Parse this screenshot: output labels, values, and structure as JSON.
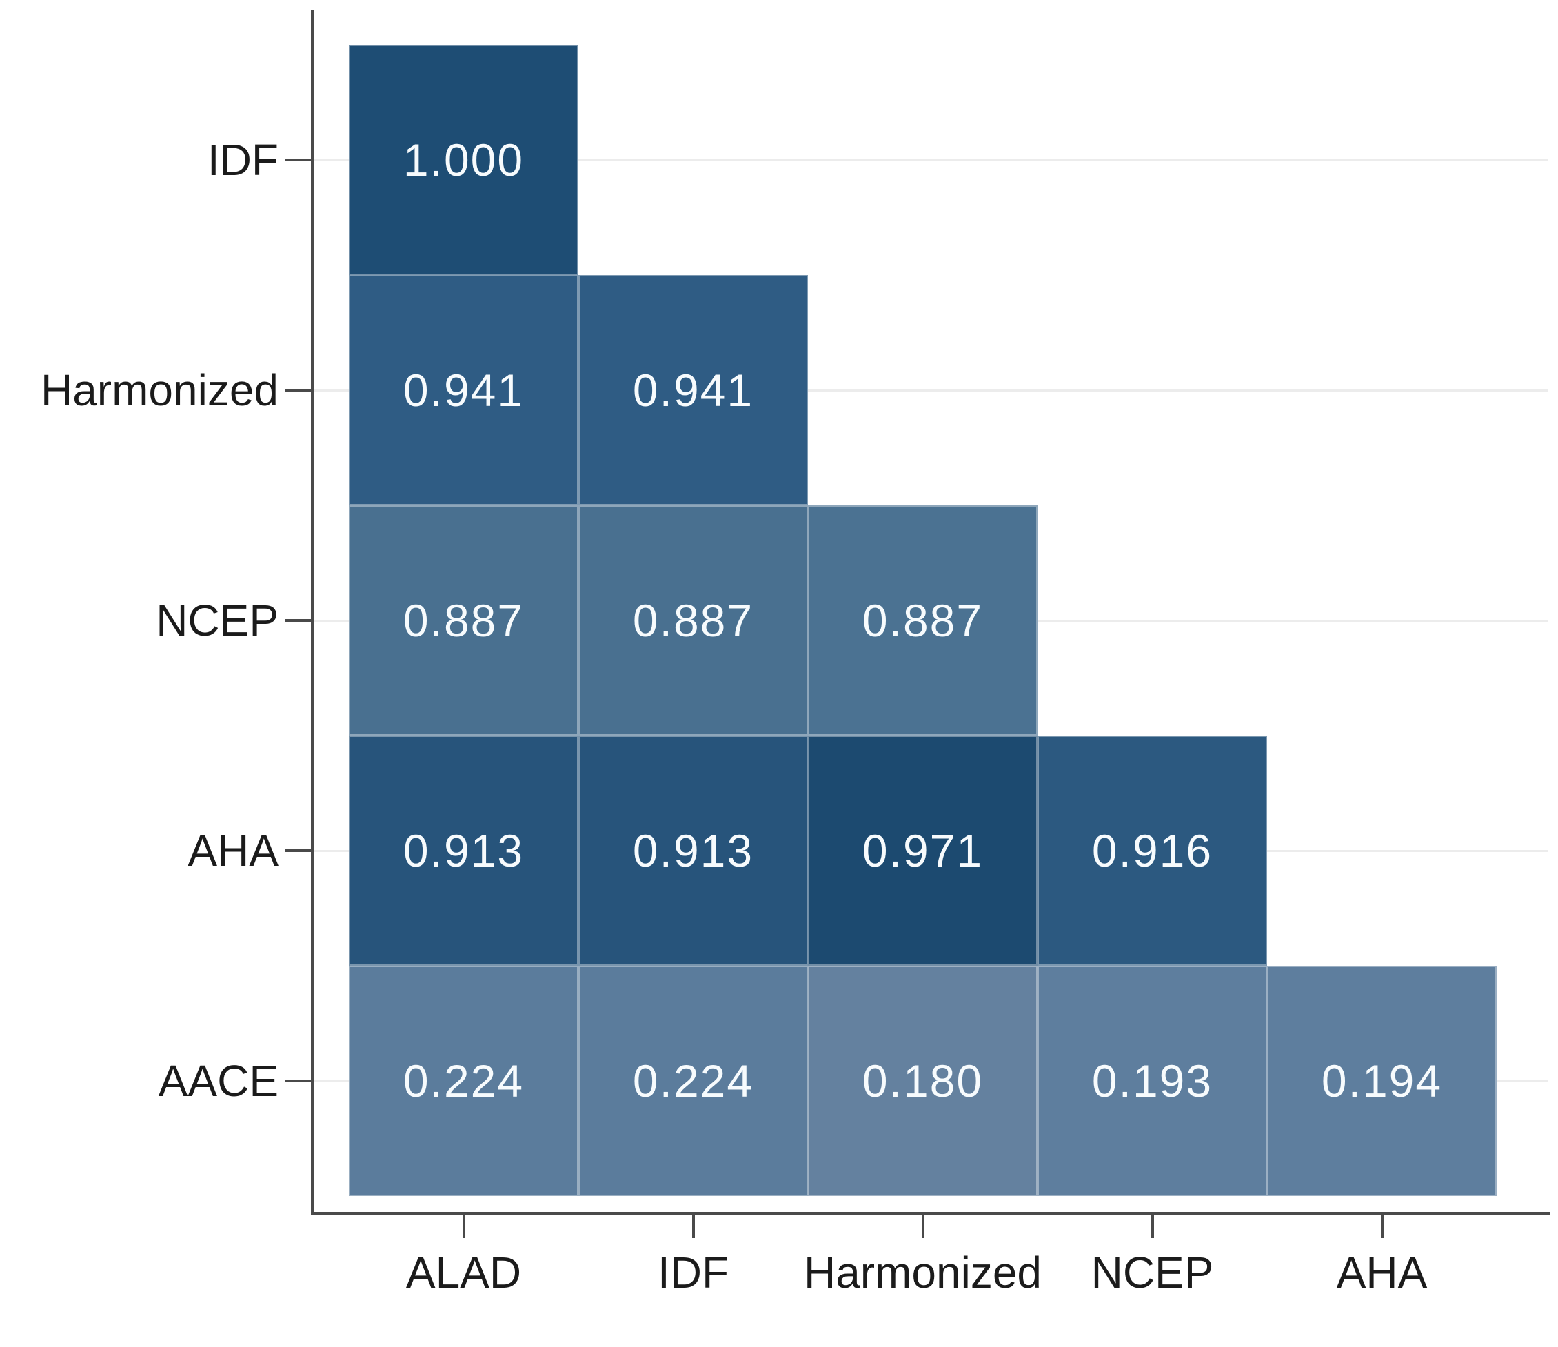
{
  "figure": {
    "background": "#ffffff",
    "description": "Lower-triangular correlation heatmap comparing metabolic syndrome definitions"
  },
  "chart_data": {
    "type": "heatmap",
    "title": "",
    "xlabel": "",
    "ylabel": "",
    "shape": "lower-triangular",
    "legend": "none",
    "grid": "faint horizontal gridlines at each row center",
    "x_categories": [
      "ALAD",
      "IDF",
      "Harmonized",
      "NCEP",
      "AHA"
    ],
    "y_categories": [
      "IDF",
      "Harmonized",
      "NCEP",
      "AHA",
      "AACE"
    ],
    "cells": [
      {
        "y": "IDF",
        "x": "ALAD",
        "value": 1.0,
        "label": "1.000",
        "color": "#1e4d74"
      },
      {
        "y": "Harmonized",
        "x": "ALAD",
        "value": 0.941,
        "label": "0.941",
        "color": "#2f5c84"
      },
      {
        "y": "Harmonized",
        "x": "IDF",
        "value": 0.941,
        "label": "0.941",
        "color": "#2f5c84"
      },
      {
        "y": "NCEP",
        "x": "ALAD",
        "value": 0.887,
        "label": "0.887",
        "color": "#497090"
      },
      {
        "y": "NCEP",
        "x": "IDF",
        "value": 0.887,
        "label": "0.887",
        "color": "#497090"
      },
      {
        "y": "NCEP",
        "x": "Harmonized",
        "value": 0.887,
        "label": "0.887",
        "color": "#4b7292"
      },
      {
        "y": "AHA",
        "x": "ALAD",
        "value": 0.913,
        "label": "0.913",
        "color": "#27547b"
      },
      {
        "y": "AHA",
        "x": "IDF",
        "value": 0.913,
        "label": "0.913",
        "color": "#27547b"
      },
      {
        "y": "AHA",
        "x": "Harmonized",
        "value": 0.971,
        "label": "0.971",
        "color": "#1c4a70"
      },
      {
        "y": "AHA",
        "x": "NCEP",
        "value": 0.916,
        "label": "0.916",
        "color": "#2c5980"
      },
      {
        "y": "AACE",
        "x": "ALAD",
        "value": 0.224,
        "label": "0.224",
        "color": "#5b7c9c"
      },
      {
        "y": "AACE",
        "x": "IDF",
        "value": 0.224,
        "label": "0.224",
        "color": "#5b7c9c"
      },
      {
        "y": "AACE",
        "x": "Harmonized",
        "value": 0.18,
        "label": "0.180",
        "color": "#64819f"
      },
      {
        "y": "AACE",
        "x": "NCEP",
        "value": 0.193,
        "label": "0.193",
        "color": "#5e7e9e"
      },
      {
        "y": "AACE",
        "x": "AHA",
        "value": 0.194,
        "label": "0.194",
        "color": "#5e7e9e"
      }
    ],
    "colors": {
      "axis": "#4a4a4a",
      "tick": "#4a4a4a",
      "gridline": "#ececec",
      "axis_label_text": "#1b1b1b",
      "cell_value_text": "#f7fbfd",
      "cell_separator": "rgba(255,255,255,0.38)"
    }
  }
}
